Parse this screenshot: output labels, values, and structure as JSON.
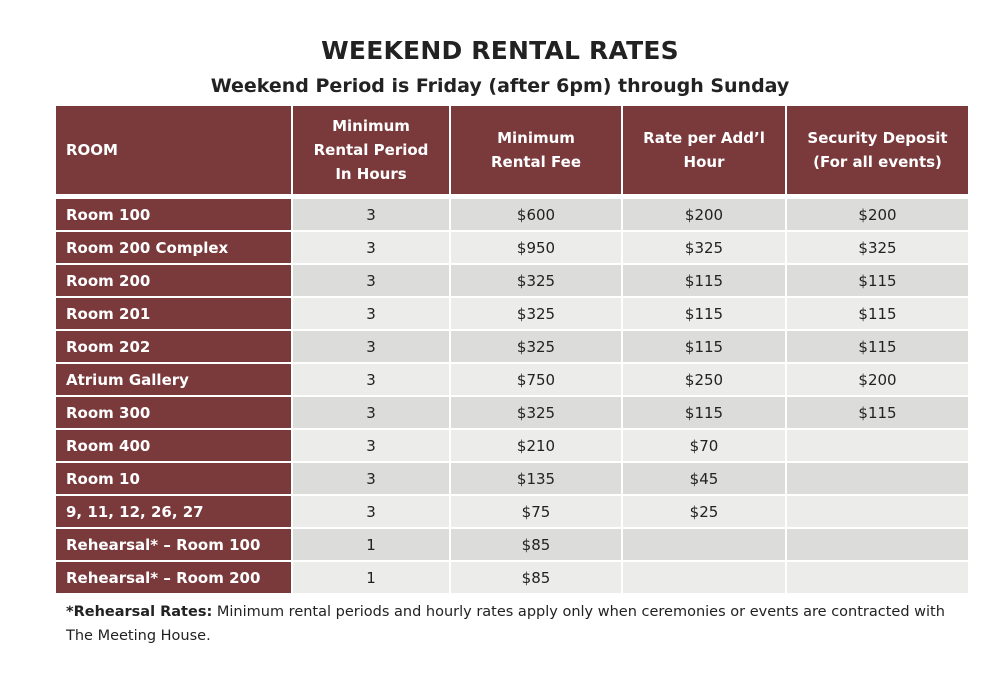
{
  "title": "WEEKEND RENTAL RATES",
  "subtitle": "Weekend Period is Friday (after 6pm) through Sunday",
  "colors": {
    "header_bg": "#7a3a3c",
    "row_odd": "#dcdcda",
    "row_even": "#ececeb"
  },
  "table": {
    "headers": [
      [
        "ROOM"
      ],
      [
        "Minimum",
        "Rental Period",
        "In Hours"
      ],
      [
        "Minimum",
        "Rental Fee"
      ],
      [
        "Rate per Add’l",
        "Hour"
      ],
      [
        "Security Deposit",
        "(For all events)"
      ]
    ],
    "rows": [
      [
        "Room 100",
        "3",
        "$600",
        "$200",
        "$200"
      ],
      [
        "Room 200 Complex",
        "3",
        "$950",
        "$325",
        "$325"
      ],
      [
        "Room 200",
        "3",
        "$325",
        "$115",
        "$115"
      ],
      [
        "Room 201",
        "3",
        "$325",
        "$115",
        "$115"
      ],
      [
        "Room 202",
        "3",
        "$325",
        "$115",
        "$115"
      ],
      [
        "Atrium Gallery",
        "3",
        "$750",
        "$250",
        "$200"
      ],
      [
        "Room 300",
        "3",
        "$325",
        "$115",
        "$115"
      ],
      [
        "Room 400",
        "3",
        "$210",
        "$70",
        ""
      ],
      [
        "Room 10",
        "3",
        "$135",
        "$45",
        ""
      ],
      [
        "9, 11, 12, 26, 27",
        "3",
        "$75",
        "$25",
        ""
      ],
      [
        "Rehearsal*  – Room 100",
        "1",
        "$85",
        "",
        ""
      ],
      [
        "Rehearsal*  – Room 200",
        "1",
        "$85",
        "",
        ""
      ]
    ]
  },
  "footnote": {
    "label": "*Rehearsal Rates:",
    "text": " Minimum rental periods and hourly rates apply only when ceremonies or events are contracted with The Meeting House."
  }
}
